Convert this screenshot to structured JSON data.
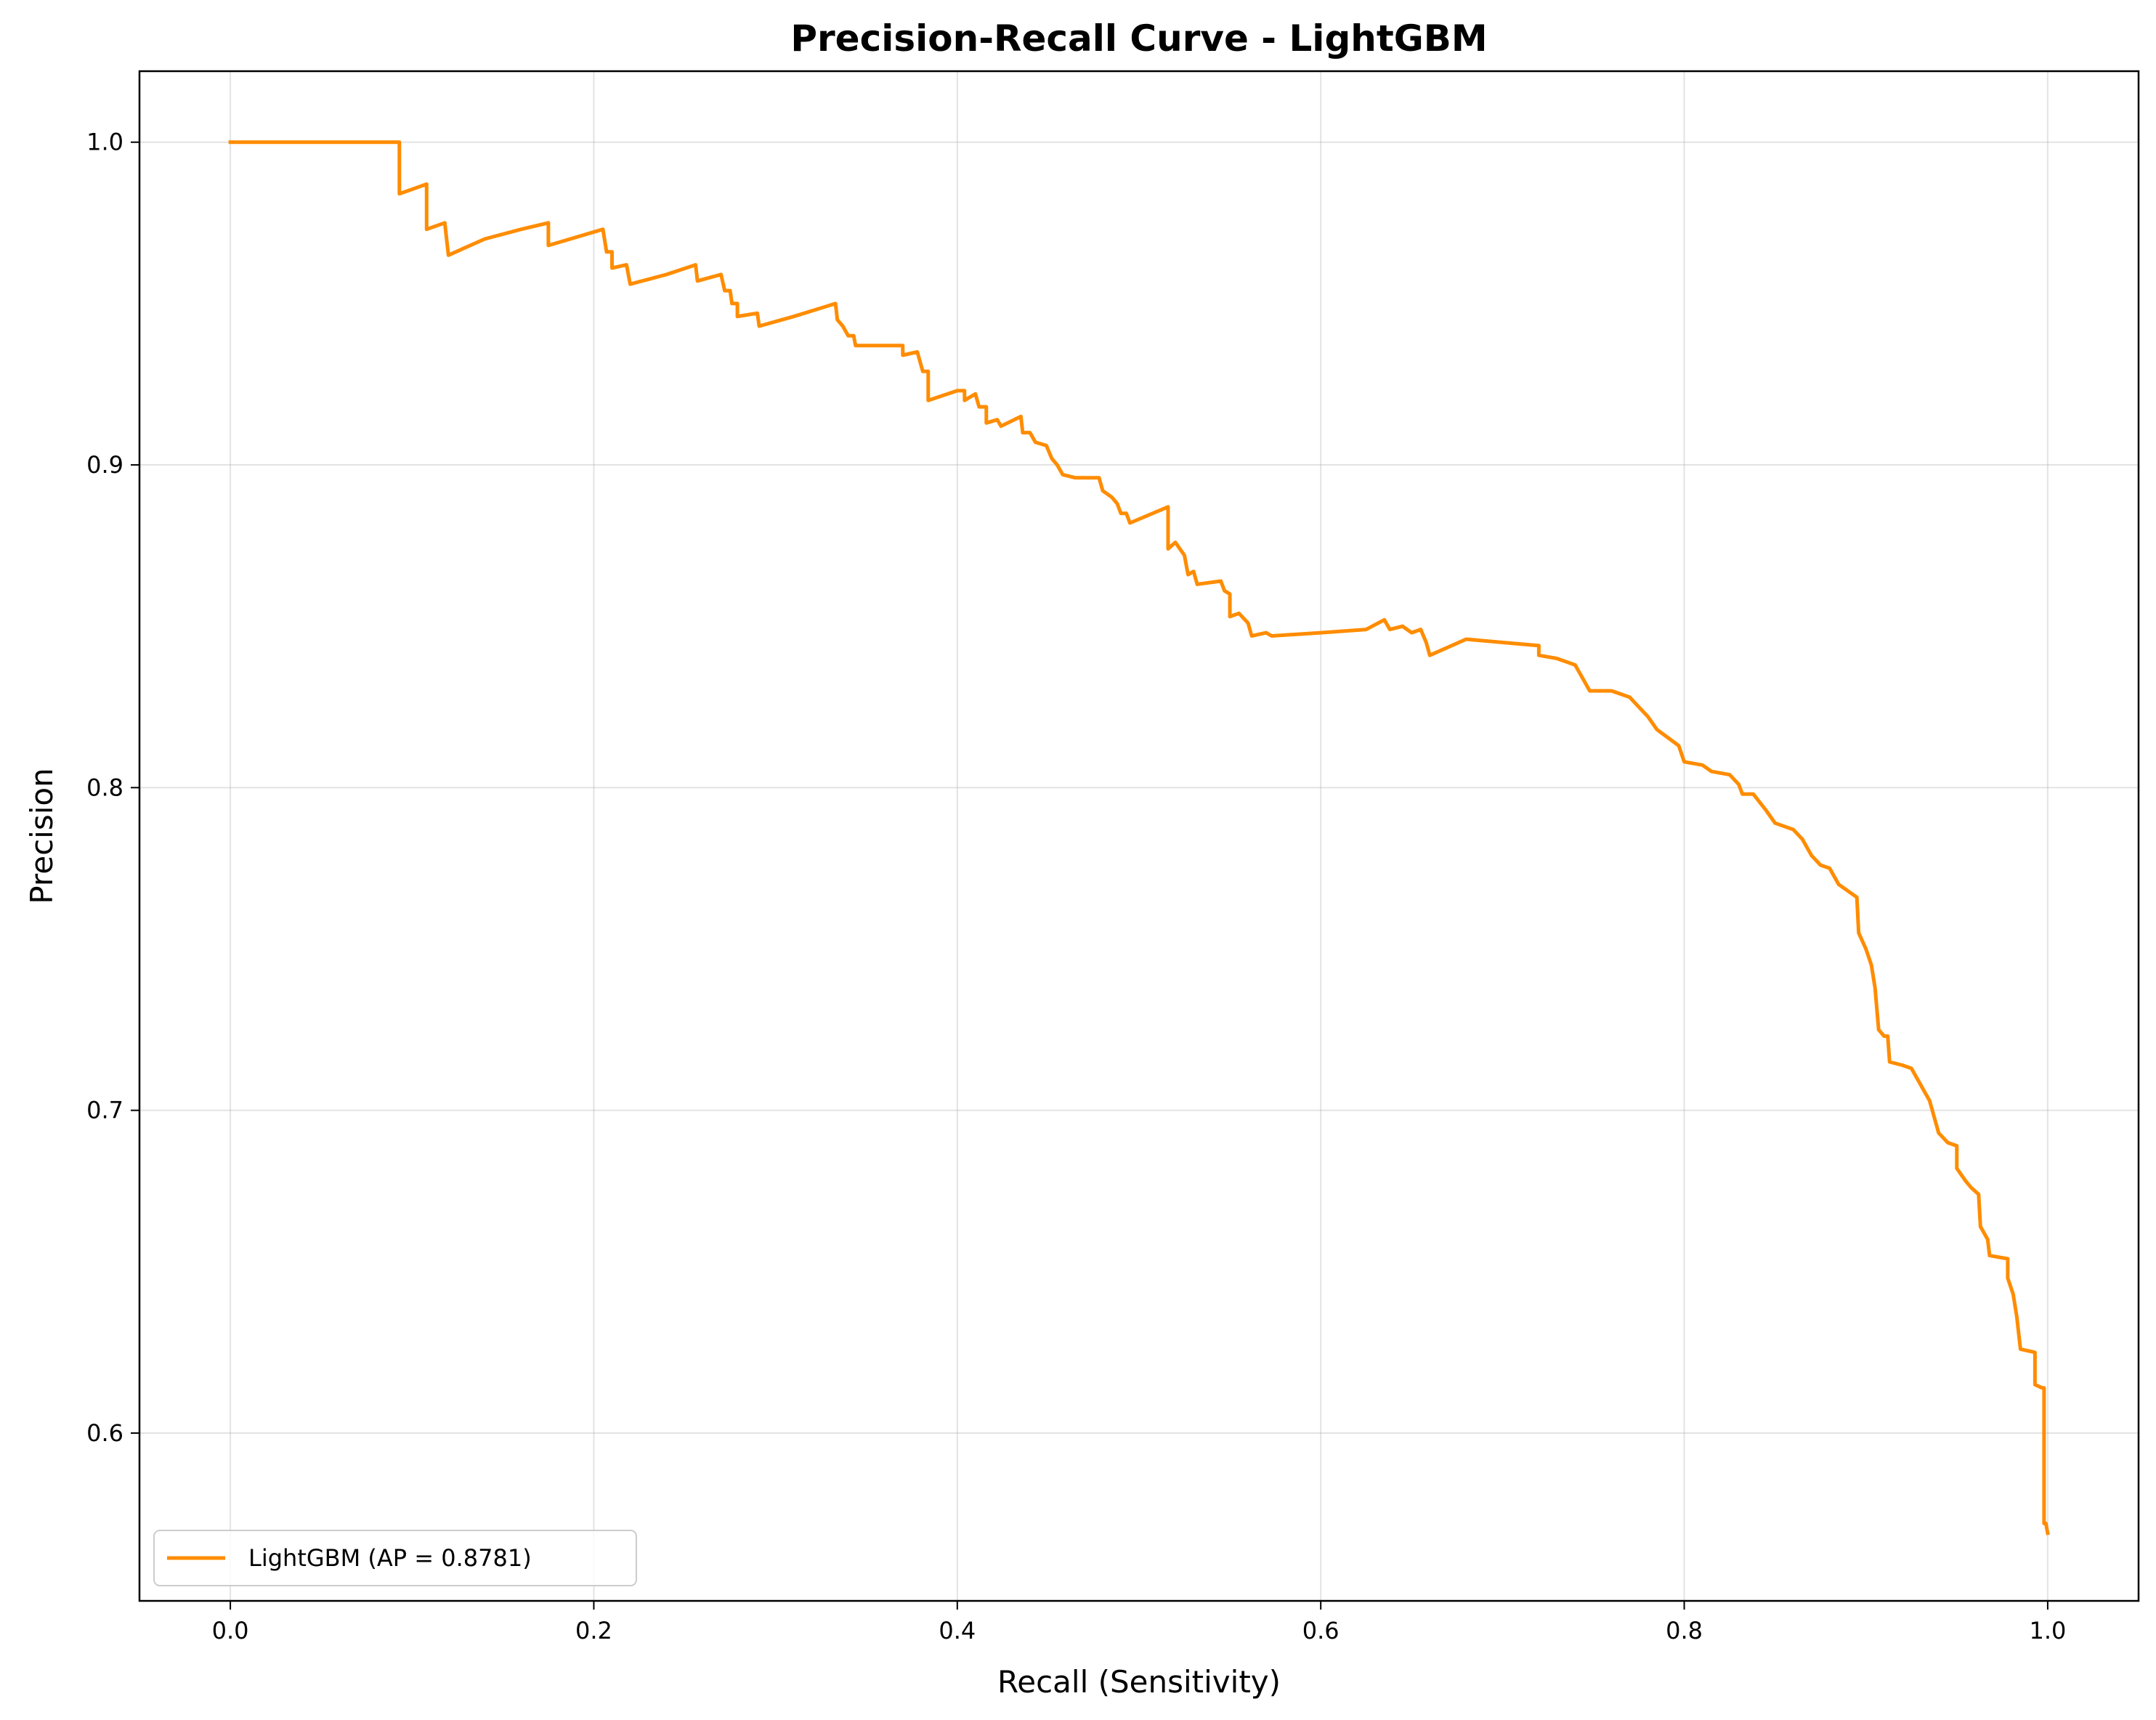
{
  "chart_data": {
    "type": "line",
    "title": "Precision-Recall Curve - LightGBM",
    "xlabel": "Recall (Sensitivity)",
    "ylabel": "Precision",
    "xlim": [
      -0.05,
      1.05
    ],
    "ylim": [
      0.548,
      1.022
    ],
    "xticks": [
      "0.0",
      "0.2",
      "0.4",
      "0.6",
      "0.8",
      "1.0"
    ],
    "yticks": [
      "0.6",
      "0.7",
      "0.8",
      "0.9",
      "1.0"
    ],
    "grid": true,
    "legend_position": "lower-left",
    "series": [
      {
        "name": "LightGBM (AP = 0.8781)",
        "color": "#ff8c00",
        "points": [
          [
            0.0,
            1.0
          ],
          [
            0.093,
            1.0
          ],
          [
            0.093,
            0.984
          ],
          [
            0.108,
            0.987
          ],
          [
            0.108,
            0.973
          ],
          [
            0.118,
            0.975
          ],
          [
            0.12,
            0.965
          ],
          [
            0.14,
            0.97
          ],
          [
            0.16,
            0.973
          ],
          [
            0.175,
            0.975
          ],
          [
            0.175,
            0.968
          ],
          [
            0.205,
            0.973
          ],
          [
            0.207,
            0.966
          ],
          [
            0.21,
            0.966
          ],
          [
            0.21,
            0.961
          ],
          [
            0.218,
            0.962
          ],
          [
            0.22,
            0.956
          ],
          [
            0.24,
            0.959
          ],
          [
            0.256,
            0.962
          ],
          [
            0.257,
            0.957
          ],
          [
            0.27,
            0.959
          ],
          [
            0.272,
            0.954
          ],
          [
            0.275,
            0.954
          ],
          [
            0.276,
            0.95
          ],
          [
            0.279,
            0.95
          ],
          [
            0.279,
            0.946
          ],
          [
            0.29,
            0.947
          ],
          [
            0.291,
            0.943
          ],
          [
            0.31,
            0.946
          ],
          [
            0.333,
            0.95
          ],
          [
            0.334,
            0.945
          ],
          [
            0.337,
            0.943
          ],
          [
            0.34,
            0.94
          ],
          [
            0.343,
            0.94
          ],
          [
            0.344,
            0.937
          ],
          [
            0.37,
            0.937
          ],
          [
            0.37,
            0.934
          ],
          [
            0.378,
            0.935
          ],
          [
            0.381,
            0.929
          ],
          [
            0.384,
            0.929
          ],
          [
            0.384,
            0.92
          ],
          [
            0.4,
            0.923
          ],
          [
            0.404,
            0.923
          ],
          [
            0.404,
            0.92
          ],
          [
            0.41,
            0.922
          ],
          [
            0.412,
            0.918
          ],
          [
            0.416,
            0.918
          ],
          [
            0.416,
            0.913
          ],
          [
            0.422,
            0.914
          ],
          [
            0.424,
            0.912
          ],
          [
            0.435,
            0.915
          ],
          [
            0.436,
            0.91
          ],
          [
            0.44,
            0.91
          ],
          [
            0.443,
            0.907
          ],
          [
            0.449,
            0.906
          ],
          [
            0.452,
            0.902
          ],
          [
            0.455,
            0.9
          ],
          [
            0.458,
            0.897
          ],
          [
            0.465,
            0.896
          ],
          [
            0.478,
            0.896
          ],
          [
            0.48,
            0.892
          ],
          [
            0.485,
            0.89
          ],
          [
            0.488,
            0.888
          ],
          [
            0.49,
            0.885
          ],
          [
            0.493,
            0.885
          ],
          [
            0.495,
            0.882
          ],
          [
            0.516,
            0.887
          ],
          [
            0.516,
            0.874
          ],
          [
            0.52,
            0.876
          ],
          [
            0.525,
            0.872
          ],
          [
            0.527,
            0.866
          ],
          [
            0.53,
            0.867
          ],
          [
            0.532,
            0.863
          ],
          [
            0.545,
            0.864
          ],
          [
            0.547,
            0.861
          ],
          [
            0.55,
            0.86
          ],
          [
            0.55,
            0.853
          ],
          [
            0.555,
            0.854
          ],
          [
            0.56,
            0.851
          ],
          [
            0.562,
            0.847
          ],
          [
            0.57,
            0.848
          ],
          [
            0.573,
            0.847
          ],
          [
            0.6,
            0.848
          ],
          [
            0.625,
            0.849
          ],
          [
            0.635,
            0.852
          ],
          [
            0.638,
            0.849
          ],
          [
            0.645,
            0.85
          ],
          [
            0.65,
            0.848
          ],
          [
            0.655,
            0.849
          ],
          [
            0.658,
            0.845
          ],
          [
            0.66,
            0.841
          ],
          [
            0.68,
            0.846
          ],
          [
            0.72,
            0.844
          ],
          [
            0.72,
            0.841
          ],
          [
            0.73,
            0.84
          ],
          [
            0.74,
            0.838
          ],
          [
            0.745,
            0.833
          ],
          [
            0.748,
            0.83
          ],
          [
            0.76,
            0.83
          ],
          [
            0.77,
            0.828
          ],
          [
            0.775,
            0.825
          ],
          [
            0.78,
            0.822
          ],
          [
            0.785,
            0.818
          ],
          [
            0.797,
            0.813
          ],
          [
            0.8,
            0.808
          ],
          [
            0.81,
            0.807
          ],
          [
            0.815,
            0.805
          ],
          [
            0.825,
            0.804
          ],
          [
            0.83,
            0.801
          ],
          [
            0.832,
            0.798
          ],
          [
            0.838,
            0.798
          ],
          [
            0.845,
            0.793
          ],
          [
            0.85,
            0.789
          ],
          [
            0.86,
            0.787
          ],
          [
            0.865,
            0.784
          ],
          [
            0.87,
            0.779
          ],
          [
            0.875,
            0.776
          ],
          [
            0.88,
            0.775
          ],
          [
            0.885,
            0.77
          ],
          [
            0.89,
            0.768
          ],
          [
            0.895,
            0.766
          ],
          [
            0.896,
            0.755
          ],
          [
            0.9,
            0.75
          ],
          [
            0.903,
            0.745
          ],
          [
            0.905,
            0.738
          ],
          [
            0.907,
            0.725
          ],
          [
            0.91,
            0.723
          ],
          [
            0.912,
            0.723
          ],
          [
            0.913,
            0.715
          ],
          [
            0.92,
            0.714
          ],
          [
            0.925,
            0.713
          ],
          [
            0.93,
            0.708
          ],
          [
            0.935,
            0.703
          ],
          [
            0.94,
            0.693
          ],
          [
            0.945,
            0.69
          ],
          [
            0.95,
            0.689
          ],
          [
            0.95,
            0.682
          ],
          [
            0.955,
            0.678
          ],
          [
            0.958,
            0.676
          ],
          [
            0.962,
            0.674
          ],
          [
            0.963,
            0.664
          ],
          [
            0.967,
            0.66
          ],
          [
            0.968,
            0.655
          ],
          [
            0.978,
            0.654
          ],
          [
            0.978,
            0.648
          ],
          [
            0.981,
            0.643
          ],
          [
            0.983,
            0.636
          ],
          [
            0.985,
            0.626
          ],
          [
            0.993,
            0.625
          ],
          [
            0.993,
            0.615
          ],
          [
            0.997,
            0.614
          ],
          [
            0.998,
            0.614
          ],
          [
            0.998,
            0.572
          ],
          [
            0.999,
            0.572
          ],
          [
            1.0,
            0.569
          ]
        ]
      }
    ]
  }
}
